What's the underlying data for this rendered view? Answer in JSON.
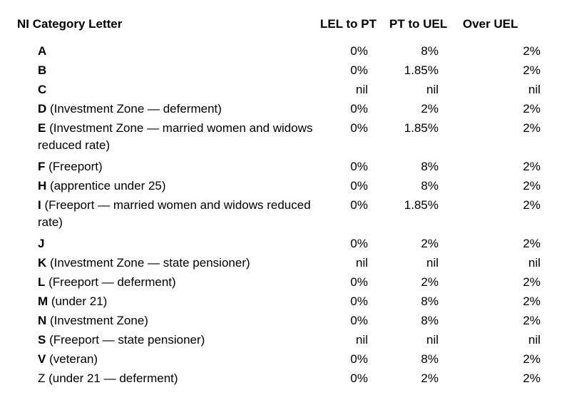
{
  "table": {
    "headers": {
      "category": "NI Category Letter",
      "lel_to_pt": "LEL to PT",
      "pt_to_uel": "PT to UEL",
      "over_uel": "Over UEL"
    },
    "rows": [
      {
        "letter": "A",
        "desc": "",
        "lel_to_pt": "0%",
        "pt_to_uel": "8%",
        "over_uel": "2%"
      },
      {
        "letter": "B",
        "desc": "",
        "lel_to_pt": "0%",
        "pt_to_uel": "1.85%",
        "over_uel": "2%"
      },
      {
        "letter": "C",
        "desc": "",
        "lel_to_pt": "nil",
        "pt_to_uel": "nil",
        "over_uel": "nil"
      },
      {
        "letter": "D",
        "desc": " (Investment Zone — deferment)",
        "lel_to_pt": "0%",
        "pt_to_uel": "2%",
        "over_uel": "2%"
      },
      {
        "letter": "E",
        "desc": " (Investment Zone — married women and widows reduced rate)",
        "lel_to_pt": "0%",
        "pt_to_uel": "1.85%",
        "over_uel": "2%"
      },
      {
        "letter": "F",
        "desc": " (Freeport)",
        "lel_to_pt": "0%",
        "pt_to_uel": "8%",
        "over_uel": "2%"
      },
      {
        "letter": "H",
        "desc": " (apprentice under 25)",
        "lel_to_pt": "0%",
        "pt_to_uel": "8%",
        "over_uel": "2%"
      },
      {
        "letter": "I",
        "desc": " (Freeport — married women and widows reduced rate)",
        "lel_to_pt": "0%",
        "pt_to_uel": "1.85%",
        "over_uel": "2%"
      },
      {
        "letter": "J",
        "desc": "",
        "lel_to_pt": "0%",
        "pt_to_uel": "2%",
        "over_uel": "2%"
      },
      {
        "letter": "K",
        "desc": " (Investment Zone — state pensioner)",
        "lel_to_pt": "nil",
        "pt_to_uel": "nil",
        "over_uel": "nil"
      },
      {
        "letter": "L",
        "desc": " (Freeport — deferment)",
        "lel_to_pt": "0%",
        "pt_to_uel": "2%",
        "over_uel": "2%"
      },
      {
        "letter": "M",
        "desc": " (under 21)",
        "lel_to_pt": "0%",
        "pt_to_uel": "8%",
        "over_uel": "2%"
      },
      {
        "letter": "N",
        "desc": " (Investment Zone)",
        "lel_to_pt": "0%",
        "pt_to_uel": "8%",
        "over_uel": "2%"
      },
      {
        "letter": "S",
        "desc": " (Freeport — state pensioner)",
        "lel_to_pt": "nil",
        "pt_to_uel": "nil",
        "over_uel": "nil"
      },
      {
        "letter": "V",
        "desc": " (veteran)",
        "lel_to_pt": "0%",
        "pt_to_uel": "8%",
        "over_uel": "2%"
      },
      {
        "letter": "",
        "desc": "Z (under 21 — deferment)",
        "lel_to_pt": "0%",
        "pt_to_uel": "2%",
        "over_uel": "2%"
      }
    ]
  }
}
